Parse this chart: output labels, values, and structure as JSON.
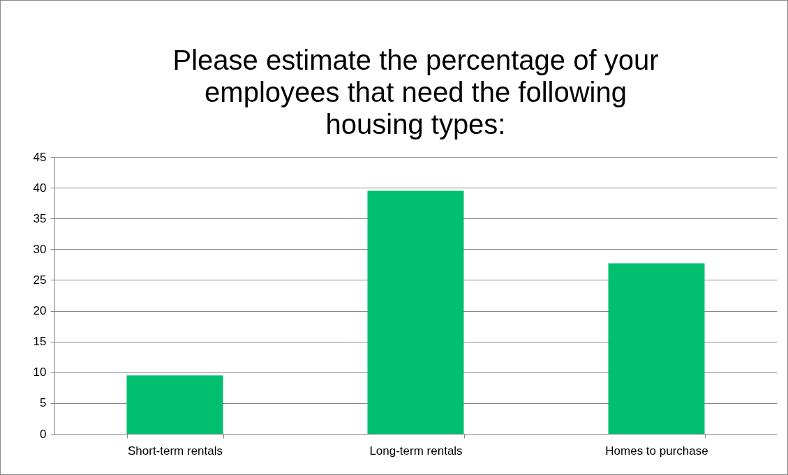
{
  "chart_data": {
    "type": "bar",
    "title": "Please estimate the percentage of your employees that need the following housing types:",
    "categories": [
      "Short-term rentals",
      "Long-term rentals",
      "Homes to purchase"
    ],
    "values": [
      9.5,
      39.5,
      27.7
    ],
    "color": "#00c070",
    "ylim": [
      0,
      45
    ],
    "yticks": [
      0,
      5,
      10,
      15,
      20,
      25,
      30,
      35,
      40,
      45
    ],
    "grid": "y"
  }
}
